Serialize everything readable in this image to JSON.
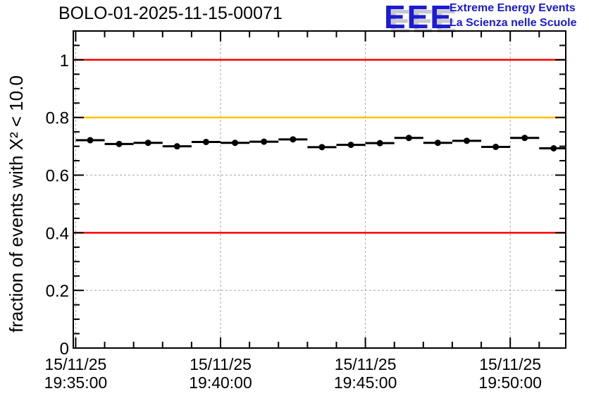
{
  "logo": {
    "acronym": "EEE",
    "line1": "Extreme Energy Events",
    "line2": "La Scienza nelle Scuole",
    "blue": "#1b1bd1",
    "shadow_gray": "#c6c6ce"
  },
  "chart_data": {
    "type": "scatter",
    "title": "BOLO-01-2025-11-15-00071",
    "xlabel": "",
    "ylabel": "fraction of events with X² < 10.0",
    "grid": true,
    "grid_color": "#a8a8a8",
    "frame_color": "#000000",
    "y_axis": {
      "min": 0,
      "max": 1.1,
      "major_step": 0.2,
      "minor_step": 0.05,
      "major_ticks": [
        0,
        0.2,
        0.4,
        0.6,
        0.8,
        1.0
      ],
      "labels": [
        "0",
        "0.2",
        "0.4",
        "0.6",
        "0.8",
        "1"
      ]
    },
    "x_axis": {
      "unit": "seconds after 19:35:00 on 15/11/25",
      "min_s": -5,
      "max_s": 1015,
      "major_ticks_s": [
        0,
        300,
        600,
        900
      ],
      "minor_step_s": 60,
      "labels": [
        [
          "15/11/25",
          "19:35:00"
        ],
        [
          "15/11/25",
          "19:40:00"
        ],
        [
          "15/11/25",
          "19:45:00"
        ],
        [
          "15/11/25",
          "19:50:00"
        ]
      ]
    },
    "reference_lines": [
      {
        "y": 1.0,
        "color": "#ff0000"
      },
      {
        "y": 0.8,
        "color": "#ffc400"
      },
      {
        "y": 0.4,
        "color": "#ff0000"
      }
    ],
    "series": [
      {
        "name": "fraction of events with X2 < 10.0 per 1-minute bin",
        "marker": "filled-circle",
        "color": "#000000",
        "x_err_s": 30,
        "points_t_s": [
          30,
          90,
          150,
          210,
          270,
          330,
          390,
          450,
          510,
          570,
          630,
          690,
          750,
          810,
          870,
          930,
          990
        ],
        "points_y": [
          0.721,
          0.708,
          0.712,
          0.7,
          0.715,
          0.712,
          0.716,
          0.724,
          0.697,
          0.705,
          0.711,
          0.729,
          0.712,
          0.719,
          0.698,
          0.729,
          0.693
        ]
      }
    ]
  }
}
